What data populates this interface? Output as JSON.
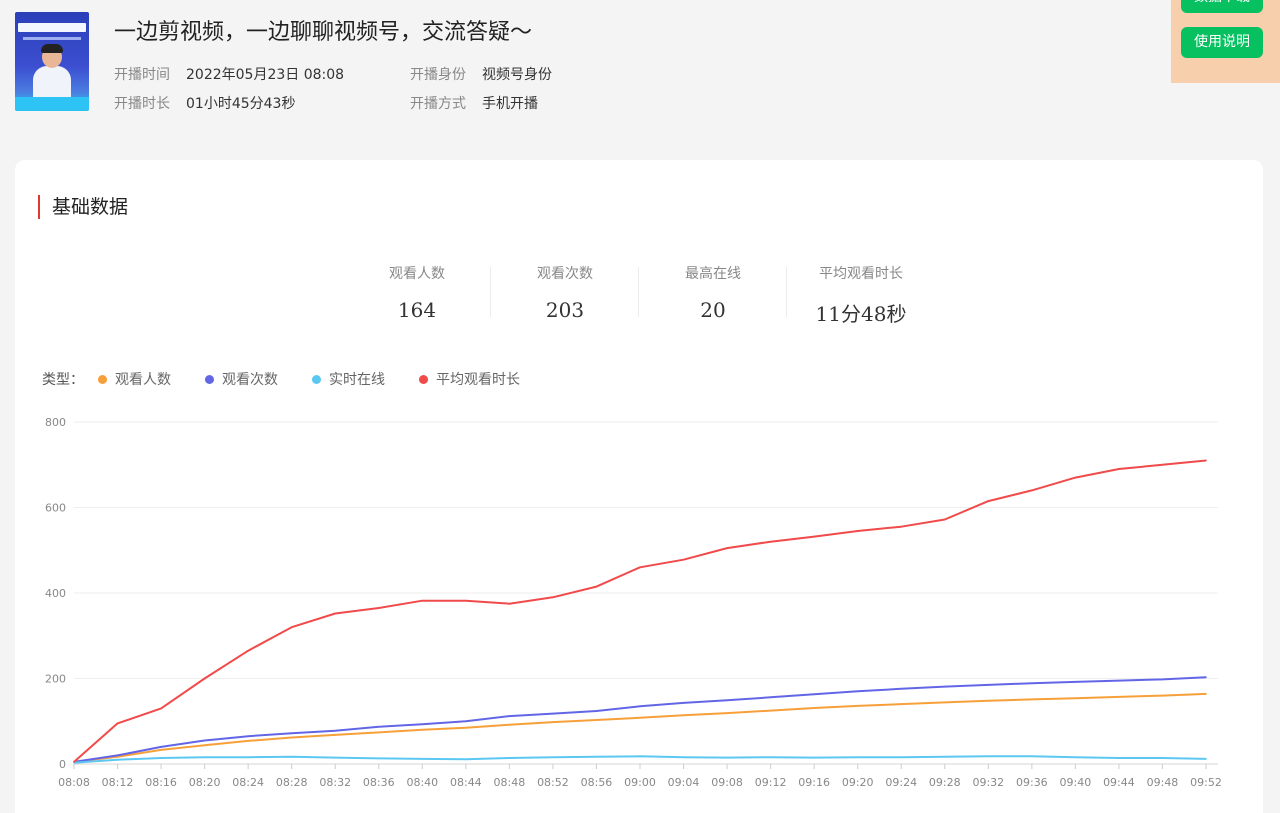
{
  "live": {
    "title": "一边剪视频，一边聊聊视频号，交流答疑～",
    "start_time_label": "开播时间",
    "start_time": "2022年05月23日 08:08",
    "identity_label": "开播身份",
    "identity": "视频号身份",
    "duration_label": "开播时长",
    "duration": "01小时45分43秒",
    "method_label": "开播方式",
    "method": "手机开播"
  },
  "top_buttons": {
    "download_label": "数据下载",
    "help_label": "使用说明"
  },
  "section": {
    "title": "基础数据"
  },
  "stats": [
    {
      "label": "观看人数",
      "value": "164"
    },
    {
      "label": "观看次数",
      "value": "203"
    },
    {
      "label": "最高在线",
      "value": "20"
    },
    {
      "label": "平均观看时长",
      "value": "11分48秒"
    }
  ],
  "legend": {
    "title": "类型：",
    "items": [
      {
        "label": "观看人数",
        "color": "#f7a03a"
      },
      {
        "label": "观看次数",
        "color": "#6266e6"
      },
      {
        "label": "实时在线",
        "color": "#5cc8f2"
      },
      {
        "label": "平均观看时长",
        "color": "#f04a4a"
      }
    ]
  },
  "chart_data": {
    "type": "line",
    "title": "",
    "xlabel": "",
    "ylabel": "",
    "ylim": [
      0,
      800
    ],
    "yticks": [
      0,
      200,
      400,
      600,
      800
    ],
    "grid": "horizontal",
    "x": [
      "08:08",
      "08:12",
      "08:16",
      "08:20",
      "08:24",
      "08:28",
      "08:32",
      "08:36",
      "08:40",
      "08:44",
      "08:48",
      "08:52",
      "08:56",
      "09:00",
      "09:04",
      "09:08",
      "09:12",
      "09:16",
      "09:20",
      "09:24",
      "09:28",
      "09:32",
      "09:36",
      "09:40",
      "09:44",
      "09:48",
      "09:52"
    ],
    "series": [
      {
        "name": "观看人数",
        "color": "#f7a03a",
        "values": [
          5,
          17,
          33,
          44,
          54,
          62,
          68,
          74,
          80,
          85,
          92,
          98,
          103,
          108,
          114,
          119,
          125,
          131,
          136,
          140,
          144,
          148,
          151,
          154,
          157,
          160,
          164
        ]
      },
      {
        "name": "观看次数",
        "color": "#6266e6",
        "values": [
          5,
          20,
          40,
          55,
          65,
          72,
          78,
          87,
          93,
          100,
          112,
          118,
          124,
          135,
          143,
          149,
          156,
          163,
          170,
          176,
          181,
          185,
          189,
          192,
          195,
          198,
          203
        ]
      },
      {
        "name": "实时在线",
        "color": "#5cc8f2",
        "values": [
          3,
          10,
          14,
          16,
          16,
          17,
          15,
          13,
          12,
          11,
          14,
          16,
          17,
          18,
          16,
          15,
          16,
          15,
          16,
          16,
          17,
          18,
          18,
          16,
          14,
          14,
          12
        ]
      },
      {
        "name": "平均观看时长",
        "color": "#f04a4a",
        "values": [
          5,
          95,
          130,
          200,
          265,
          320,
          352,
          365,
          382,
          382,
          375,
          390,
          415,
          460,
          478,
          505,
          520,
          532,
          545,
          555,
          572,
          615,
          640,
          670,
          690,
          700,
          710
        ]
      }
    ]
  }
}
